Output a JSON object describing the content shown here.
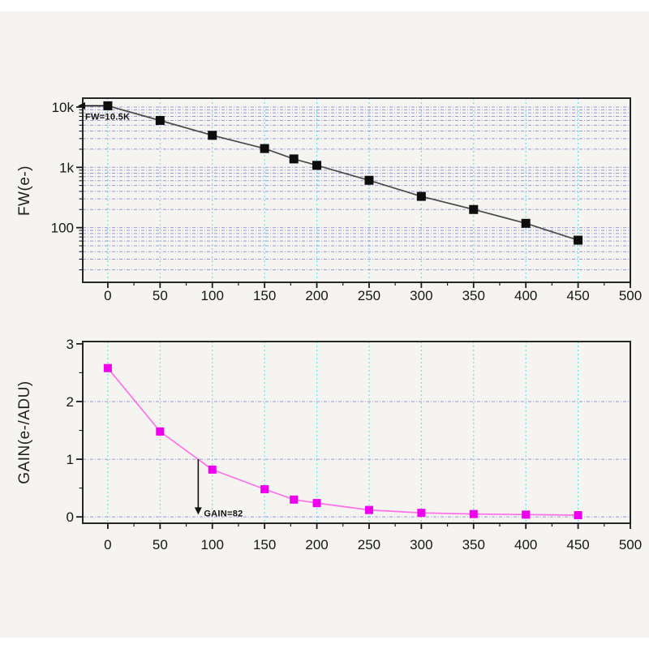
{
  "figure": {
    "bg": "#f5f4f1",
    "frame_color": "#262626",
    "grid_h_color": "#8282d2",
    "grid_v_color": "#55e5e5",
    "tick_color": "#1c1c1c",
    "label_color": "#161616",
    "annotation_color": "#111111"
  },
  "chart_data": [
    {
      "id": "fw",
      "type": "line",
      "title": "",
      "xlabel": "",
      "ylabel": "FW(e-)",
      "yscale": "log",
      "legend": "none",
      "grid": true,
      "x": [
        0,
        50,
        100,
        150,
        178,
        200,
        250,
        300,
        350,
        400,
        450
      ],
      "values": [
        10500,
        6000,
        3400,
        2050,
        1380,
        1080,
        610,
        330,
        200,
        118,
        62
      ],
      "xlim": [
        -24,
        500
      ],
      "ylim": [
        12.4,
        14050
      ],
      "xticks": [
        0,
        50,
        100,
        150,
        200,
        250,
        300,
        350,
        400,
        450,
        500
      ],
      "yticks": [
        {
          "v": 10000,
          "label": "10k"
        },
        {
          "v": 1000,
          "label": "1k"
        },
        {
          "v": 100,
          "label": "100"
        }
      ],
      "line_color": "#4a4a4a",
      "marker_color": "#0d0d0d",
      "marker_size": 11,
      "annotation": {
        "text": "FW=10.5K",
        "kind": "arrow-left",
        "at_x": 0,
        "at_y": 10500
      }
    },
    {
      "id": "gain",
      "type": "line",
      "title": "",
      "xlabel": "",
      "ylabel": "GAIN(e-/ADU)",
      "yscale": "linear",
      "legend": "none",
      "grid": true,
      "x": [
        0,
        50,
        100,
        150,
        178,
        200,
        250,
        300,
        350,
        400,
        450
      ],
      "values": [
        2.58,
        1.48,
        0.82,
        0.48,
        0.3,
        0.24,
        0.12,
        0.07,
        0.05,
        0.04,
        0.03
      ],
      "xlim": [
        -24,
        500
      ],
      "ylim": [
        -0.11,
        3.04
      ],
      "xticks": [
        0,
        50,
        100,
        150,
        200,
        250,
        300,
        350,
        400,
        450,
        500
      ],
      "yticks": [
        {
          "v": 3,
          "label": "3"
        },
        {
          "v": 2,
          "label": "2"
        },
        {
          "v": 1,
          "label": "1"
        },
        {
          "v": 0,
          "label": "0"
        }
      ],
      "y_minor": [
        0.5,
        1.5,
        2.5
      ],
      "grid_h_values": [
        0,
        1,
        2
      ],
      "line_color": "#ff70e8",
      "marker_color": "#ee00ee",
      "marker_size": 10,
      "annotation": {
        "text": "GAIN=82",
        "kind": "arrow-down",
        "x": 86.5,
        "from_y": 1.0,
        "to_y": 0.04
      }
    }
  ]
}
